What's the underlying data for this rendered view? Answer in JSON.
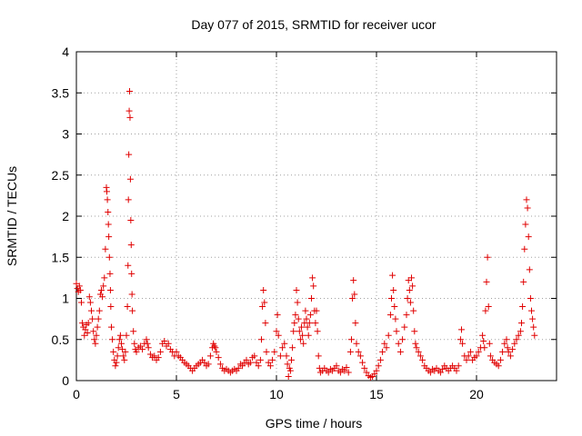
{
  "chart_data": {
    "type": "scatter",
    "title": "Day 077 of 2015, SRMTID for receiver ucor",
    "xlabel": "GPS time / hours",
    "ylabel": "SRMTID / TECUs",
    "xlim": [
      0,
      24
    ],
    "ylim": [
      0,
      4
    ],
    "xticks": [
      0,
      5,
      10,
      15,
      20
    ],
    "xtick_labels": [
      "0",
      "5",
      "10",
      "15",
      "20"
    ],
    "yticks": [
      0,
      0.5,
      1,
      1.5,
      2,
      2.5,
      3,
      3.5,
      4
    ],
    "ytick_labels": [
      "0",
      "0.5",
      "1",
      "1.5",
      "2",
      "2.5",
      "3",
      "3.5",
      "4"
    ],
    "grid": true,
    "marker": "+",
    "color": "#e00000",
    "series": [
      {
        "name": "SRMTID",
        "points": [
          [
            0.0,
            1.18
          ],
          [
            0.05,
            1.12
          ],
          [
            0.1,
            1.08
          ],
          [
            0.15,
            1.15
          ],
          [
            0.2,
            1.1
          ],
          [
            0.25,
            0.95
          ],
          [
            0.3,
            0.7
          ],
          [
            0.35,
            0.65
          ],
          [
            0.4,
            0.55
          ],
          [
            0.45,
            0.62
          ],
          [
            0.5,
            0.68
          ],
          [
            0.55,
            0.58
          ],
          [
            0.6,
            0.7
          ],
          [
            0.65,
            1.02
          ],
          [
            0.7,
            0.95
          ],
          [
            0.75,
            0.85
          ],
          [
            0.8,
            0.75
          ],
          [
            0.85,
            0.6
          ],
          [
            0.9,
            0.5
          ],
          [
            0.95,
            0.45
          ],
          [
            1.0,
            0.55
          ],
          [
            1.05,
            0.65
          ],
          [
            1.1,
            0.75
          ],
          [
            1.15,
            0.85
          ],
          [
            1.2,
            1.05
          ],
          [
            1.25,
            1.1
          ],
          [
            1.3,
            1.02
          ],
          [
            1.35,
            1.15
          ],
          [
            1.4,
            1.25
          ],
          [
            1.45,
            1.6
          ],
          [
            1.5,
            2.35
          ],
          [
            1.52,
            2.3
          ],
          [
            1.55,
            2.2
          ],
          [
            1.58,
            2.05
          ],
          [
            1.6,
            1.9
          ],
          [
            1.62,
            1.75
          ],
          [
            1.65,
            1.5
          ],
          [
            1.68,
            1.3
          ],
          [
            1.7,
            1.1
          ],
          [
            1.72,
            0.9
          ],
          [
            1.75,
            0.65
          ],
          [
            1.8,
            0.5
          ],
          [
            1.85,
            0.35
          ],
          [
            1.9,
            0.25
          ],
          [
            1.95,
            0.18
          ],
          [
            2.0,
            0.22
          ],
          [
            2.05,
            0.3
          ],
          [
            2.1,
            0.4
          ],
          [
            2.15,
            0.5
          ],
          [
            2.2,
            0.55
          ],
          [
            2.25,
            0.45
          ],
          [
            2.3,
            0.38
          ],
          [
            2.35,
            0.3
          ],
          [
            2.4,
            0.25
          ],
          [
            2.45,
            0.35
          ],
          [
            2.5,
            0.55
          ],
          [
            2.55,
            0.9
          ],
          [
            2.58,
            1.4
          ],
          [
            2.6,
            2.2
          ],
          [
            2.62,
            2.75
          ],
          [
            2.64,
            3.28
          ],
          [
            2.66,
            3.52
          ],
          [
            2.68,
            3.2
          ],
          [
            2.7,
            2.45
          ],
          [
            2.72,
            1.95
          ],
          [
            2.74,
            1.65
          ],
          [
            2.76,
            1.3
          ],
          [
            2.78,
            1.05
          ],
          [
            2.8,
            0.85
          ],
          [
            2.85,
            0.6
          ],
          [
            2.9,
            0.45
          ],
          [
            2.95,
            0.38
          ],
          [
            3.0,
            0.35
          ],
          [
            3.1,
            0.4
          ],
          [
            3.2,
            0.42
          ],
          [
            3.3,
            0.38
          ],
          [
            3.4,
            0.45
          ],
          [
            3.5,
            0.5
          ],
          [
            3.55,
            0.45
          ],
          [
            3.6,
            0.4
          ],
          [
            3.7,
            0.32
          ],
          [
            3.8,
            0.28
          ],
          [
            3.9,
            0.3
          ],
          [
            4.0,
            0.25
          ],
          [
            4.1,
            0.28
          ],
          [
            4.2,
            0.35
          ],
          [
            4.3,
            0.45
          ],
          [
            4.4,
            0.48
          ],
          [
            4.5,
            0.42
          ],
          [
            4.6,
            0.45
          ],
          [
            4.7,
            0.38
          ],
          [
            4.8,
            0.35
          ],
          [
            4.9,
            0.3
          ],
          [
            5.0,
            0.35
          ],
          [
            5.1,
            0.3
          ],
          [
            5.2,
            0.28
          ],
          [
            5.3,
            0.25
          ],
          [
            5.4,
            0.22
          ],
          [
            5.5,
            0.2
          ],
          [
            5.6,
            0.18
          ],
          [
            5.7,
            0.15
          ],
          [
            5.8,
            0.12
          ],
          [
            5.9,
            0.15
          ],
          [
            6.0,
            0.18
          ],
          [
            6.1,
            0.2
          ],
          [
            6.2,
            0.22
          ],
          [
            6.3,
            0.25
          ],
          [
            6.4,
            0.22
          ],
          [
            6.5,
            0.18
          ],
          [
            6.6,
            0.2
          ],
          [
            6.7,
            0.3
          ],
          [
            6.8,
            0.4
          ],
          [
            6.85,
            0.45
          ],
          [
            6.9,
            0.42
          ],
          [
            6.95,
            0.4
          ],
          [
            7.0,
            0.35
          ],
          [
            7.1,
            0.28
          ],
          [
            7.2,
            0.2
          ],
          [
            7.3,
            0.15
          ],
          [
            7.4,
            0.12
          ],
          [
            7.5,
            0.14
          ],
          [
            7.6,
            0.12
          ],
          [
            7.7,
            0.1
          ],
          [
            7.8,
            0.12
          ],
          [
            7.9,
            0.14
          ],
          [
            8.0,
            0.12
          ],
          [
            8.1,
            0.15
          ],
          [
            8.2,
            0.2
          ],
          [
            8.3,
            0.18
          ],
          [
            8.4,
            0.22
          ],
          [
            8.5,
            0.25
          ],
          [
            8.6,
            0.2
          ],
          [
            8.7,
            0.22
          ],
          [
            8.8,
            0.28
          ],
          [
            8.9,
            0.3
          ],
          [
            9.0,
            0.22
          ],
          [
            9.1,
            0.18
          ],
          [
            9.2,
            0.25
          ],
          [
            9.25,
            0.5
          ],
          [
            9.3,
            0.9
          ],
          [
            9.35,
            1.1
          ],
          [
            9.4,
            0.95
          ],
          [
            9.45,
            0.7
          ],
          [
            9.5,
            0.35
          ],
          [
            9.6,
            0.22
          ],
          [
            9.7,
            0.18
          ],
          [
            9.8,
            0.25
          ],
          [
            9.9,
            0.35
          ],
          [
            10.0,
            0.6
          ],
          [
            10.05,
            0.8
          ],
          [
            10.1,
            0.55
          ],
          [
            10.2,
            0.3
          ],
          [
            10.3,
            0.4
          ],
          [
            10.4,
            0.45
          ],
          [
            10.5,
            0.3
          ],
          [
            10.55,
            0.2
          ],
          [
            10.6,
            0.05
          ],
          [
            10.65,
            0.15
          ],
          [
            10.7,
            0.12
          ],
          [
            10.75,
            0.25
          ],
          [
            10.8,
            0.4
          ],
          [
            10.85,
            0.6
          ],
          [
            10.9,
            0.7
          ],
          [
            10.95,
            0.8
          ],
          [
            11.0,
            1.1
          ],
          [
            11.05,
            0.95
          ],
          [
            11.1,
            0.75
          ],
          [
            11.15,
            0.6
          ],
          [
            11.2,
            0.5
          ],
          [
            11.25,
            0.65
          ],
          [
            11.3,
            0.55
          ],
          [
            11.35,
            0.45
          ],
          [
            11.4,
            0.7
          ],
          [
            11.45,
            0.85
          ],
          [
            11.5,
            0.75
          ],
          [
            11.55,
            0.65
          ],
          [
            11.6,
            0.55
          ],
          [
            11.65,
            0.7
          ],
          [
            11.7,
            0.8
          ],
          [
            11.75,
            1.0
          ],
          [
            11.8,
            1.25
          ],
          [
            11.85,
            1.15
          ],
          [
            11.9,
            0.85
          ],
          [
            11.95,
            0.7
          ],
          [
            12.0,
            0.85
          ],
          [
            12.05,
            0.6
          ],
          [
            12.1,
            0.3
          ],
          [
            12.15,
            0.15
          ],
          [
            12.2,
            0.1
          ],
          [
            12.3,
            0.12
          ],
          [
            12.4,
            0.15
          ],
          [
            12.5,
            0.12
          ],
          [
            12.6,
            0.1
          ],
          [
            12.7,
            0.14
          ],
          [
            12.8,
            0.12
          ],
          [
            12.9,
            0.15
          ],
          [
            13.0,
            0.18
          ],
          [
            13.1,
            0.12
          ],
          [
            13.2,
            0.1
          ],
          [
            13.3,
            0.14
          ],
          [
            13.4,
            0.12
          ],
          [
            13.5,
            0.16
          ],
          [
            13.6,
            0.1
          ],
          [
            13.7,
            0.35
          ],
          [
            13.75,
            0.5
          ],
          [
            13.8,
            1.0
          ],
          [
            13.85,
            1.22
          ],
          [
            13.9,
            1.05
          ],
          [
            13.95,
            0.7
          ],
          [
            14.0,
            0.45
          ],
          [
            14.1,
            0.35
          ],
          [
            14.2,
            0.3
          ],
          [
            14.3,
            0.22
          ],
          [
            14.4,
            0.15
          ],
          [
            14.5,
            0.1
          ],
          [
            14.6,
            0.06
          ],
          [
            14.7,
            0.04
          ],
          [
            14.8,
            0.05
          ],
          [
            14.9,
            0.08
          ],
          [
            15.0,
            0.12
          ],
          [
            15.1,
            0.18
          ],
          [
            15.2,
            0.25
          ],
          [
            15.3,
            0.35
          ],
          [
            15.4,
            0.45
          ],
          [
            15.5,
            0.4
          ],
          [
            15.6,
            0.55
          ],
          [
            15.7,
            0.8
          ],
          [
            15.75,
            1.0
          ],
          [
            15.8,
            1.28
          ],
          [
            15.85,
            1.1
          ],
          [
            15.9,
            0.9
          ],
          [
            15.95,
            0.75
          ],
          [
            16.0,
            0.6
          ],
          [
            16.1,
            0.45
          ],
          [
            16.2,
            0.35
          ],
          [
            16.3,
            0.5
          ],
          [
            16.4,
            0.65
          ],
          [
            16.5,
            0.8
          ],
          [
            16.55,
            1.0
          ],
          [
            16.6,
            1.22
          ],
          [
            16.65,
            1.1
          ],
          [
            16.7,
            0.95
          ],
          [
            16.75,
            1.25
          ],
          [
            16.8,
            1.15
          ],
          [
            16.85,
            0.85
          ],
          [
            16.9,
            0.6
          ],
          [
            16.95,
            0.45
          ],
          [
            17.0,
            0.4
          ],
          [
            17.1,
            0.35
          ],
          [
            17.2,
            0.3
          ],
          [
            17.3,
            0.25
          ],
          [
            17.4,
            0.18
          ],
          [
            17.5,
            0.15
          ],
          [
            17.6,
            0.12
          ],
          [
            17.7,
            0.1
          ],
          [
            17.8,
            0.14
          ],
          [
            17.9,
            0.12
          ],
          [
            18.0,
            0.15
          ],
          [
            18.1,
            0.12
          ],
          [
            18.2,
            0.1
          ],
          [
            18.3,
            0.14
          ],
          [
            18.4,
            0.18
          ],
          [
            18.5,
            0.15
          ],
          [
            18.6,
            0.12
          ],
          [
            18.7,
            0.15
          ],
          [
            18.8,
            0.18
          ],
          [
            18.9,
            0.15
          ],
          [
            19.0,
            0.12
          ],
          [
            19.1,
            0.18
          ],
          [
            19.2,
            0.5
          ],
          [
            19.25,
            0.62
          ],
          [
            19.3,
            0.45
          ],
          [
            19.4,
            0.3
          ],
          [
            19.5,
            0.25
          ],
          [
            19.6,
            0.3
          ],
          [
            19.7,
            0.35
          ],
          [
            19.8,
            0.25
          ],
          [
            19.9,
            0.28
          ],
          [
            20.0,
            0.3
          ],
          [
            20.1,
            0.35
          ],
          [
            20.2,
            0.4
          ],
          [
            20.3,
            0.55
          ],
          [
            20.35,
            0.48
          ],
          [
            20.4,
            0.4
          ],
          [
            20.45,
            0.85
          ],
          [
            20.5,
            1.2
          ],
          [
            20.55,
            1.5
          ],
          [
            20.6,
            0.9
          ],
          [
            20.65,
            0.45
          ],
          [
            20.7,
            0.3
          ],
          [
            20.8,
            0.25
          ],
          [
            20.9,
            0.22
          ],
          [
            21.0,
            0.2
          ],
          [
            21.1,
            0.18
          ],
          [
            21.2,
            0.25
          ],
          [
            21.3,
            0.35
          ],
          [
            21.4,
            0.45
          ],
          [
            21.5,
            0.5
          ],
          [
            21.55,
            0.4
          ],
          [
            21.6,
            0.35
          ],
          [
            21.7,
            0.3
          ],
          [
            21.8,
            0.38
          ],
          [
            21.9,
            0.45
          ],
          [
            22.0,
            0.5
          ],
          [
            22.1,
            0.55
          ],
          [
            22.2,
            0.6
          ],
          [
            22.25,
            0.7
          ],
          [
            22.3,
            0.9
          ],
          [
            22.35,
            1.2
          ],
          [
            22.4,
            1.6
          ],
          [
            22.45,
            1.9
          ],
          [
            22.5,
            2.2
          ],
          [
            22.55,
            2.1
          ],
          [
            22.6,
            1.75
          ],
          [
            22.65,
            1.35
          ],
          [
            22.7,
            1.0
          ],
          [
            22.75,
            0.85
          ],
          [
            22.8,
            0.75
          ],
          [
            22.85,
            0.65
          ],
          [
            22.9,
            0.55
          ]
        ]
      }
    ]
  }
}
